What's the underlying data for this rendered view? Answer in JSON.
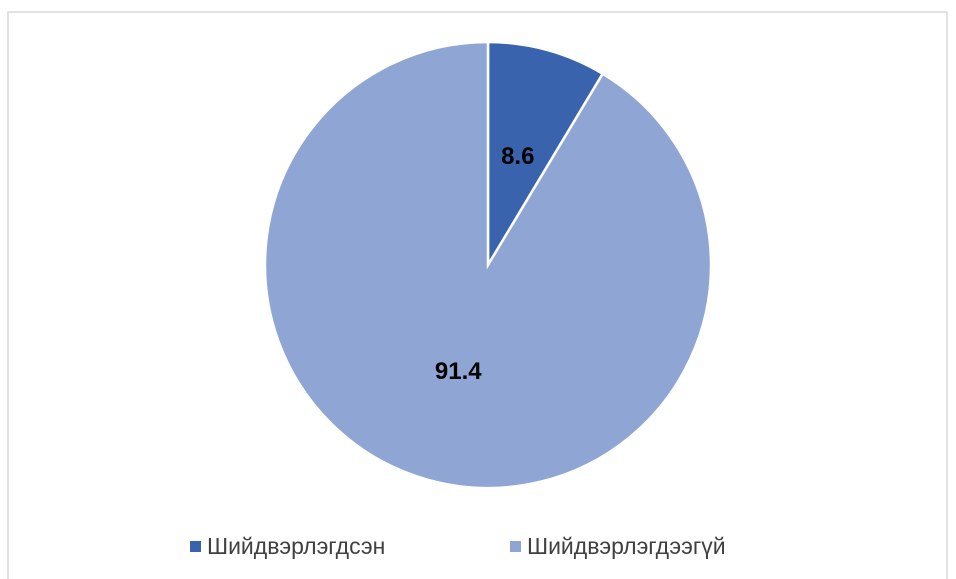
{
  "chart_data": {
    "type": "pie",
    "categories": [
      "Шийдвэрлэгдсэн",
      "Шийдвэрлэгдээгүй"
    ],
    "values": [
      8.6,
      91.4
    ],
    "colors": [
      "#3a63ad",
      "#8fa5d4"
    ]
  }
}
